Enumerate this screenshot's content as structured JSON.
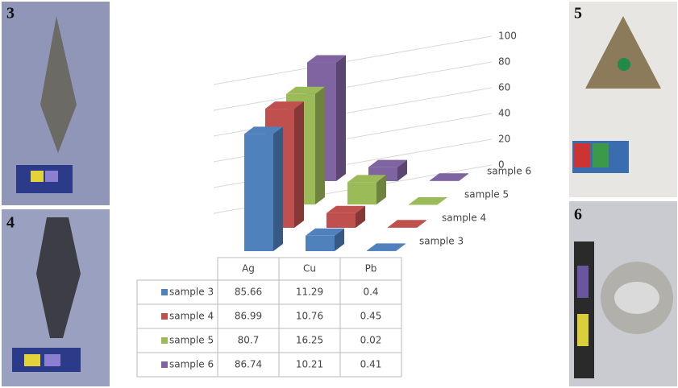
{
  "photos": [
    {
      "label": "3"
    },
    {
      "label": "4"
    },
    {
      "label": "5"
    },
    {
      "label": "6"
    }
  ],
  "chart_data": {
    "type": "bar3d",
    "categories": [
      "Ag",
      "Cu",
      "Pb"
    ],
    "series": [
      {
        "name": "sample 3",
        "color": "#4f81bd",
        "values": [
          85.66,
          11.29,
          0.4
        ]
      },
      {
        "name": "sample 4",
        "color": "#c0504d",
        "values": [
          86.99,
          10.76,
          0.45
        ]
      },
      {
        "name": "sample 5",
        "color": "#9bbb59",
        "values": [
          80.7,
          16.25,
          0.02
        ]
      },
      {
        "name": "sample 6",
        "color": "#8064a2",
        "values": [
          86.74,
          10.21,
          0.41
        ]
      }
    ],
    "ylim": [
      0,
      100
    ],
    "yticks": [
      0,
      20,
      40,
      60,
      80,
      100
    ],
    "grid": true
  }
}
